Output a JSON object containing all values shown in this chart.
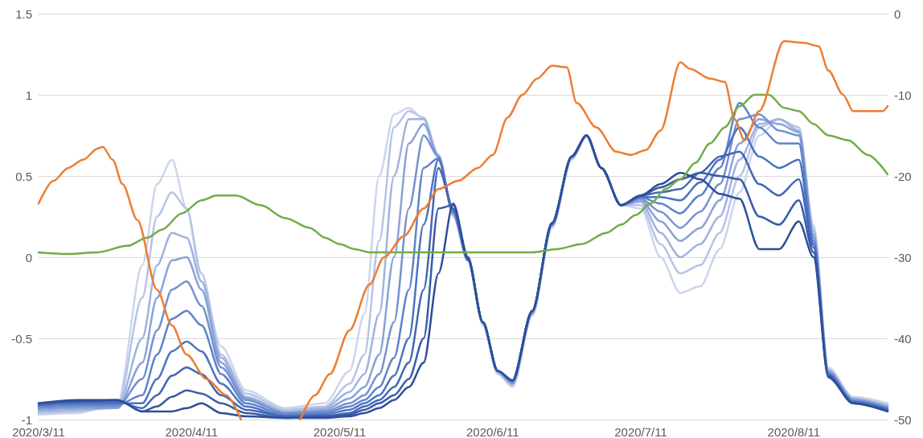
{
  "chart_data": {
    "type": "line",
    "grid": "y",
    "marker": "none",
    "line_style": "solid",
    "x": [
      "2020-03-11",
      "2020-03-19",
      "2020-03-27",
      "2020-04-01",
      "2020-04-04",
      "2020-04-07",
      "2020-04-10",
      "2020-04-13",
      "2020-04-17",
      "2020-04-22",
      "2020-04-30",
      "2020-05-08",
      "2020-05-13",
      "2020-05-16",
      "2020-05-19",
      "2020-05-22",
      "2020-05-25",
      "2020-05-28",
      "2020-05-31",
      "2020-06-03",
      "2020-06-06",
      "2020-06-09",
      "2020-06-12",
      "2020-06-15",
      "2020-06-19",
      "2020-06-23",
      "2020-06-27",
      "2020-06-30",
      "2020-07-03",
      "2020-07-07",
      "2020-07-11",
      "2020-07-15",
      "2020-07-19",
      "2020-07-23",
      "2020-07-27",
      "2020-07-31",
      "2020-08-04",
      "2020-08-08",
      "2020-08-12",
      "2020-08-15",
      "2020-08-18",
      "2020-08-23",
      "2020-08-30"
    ],
    "xlim": [
      "2020-03-11",
      "2020-08-30"
    ],
    "xticks": [
      {
        "value": "2020-03-11",
        "label": "2020/3/11"
      },
      {
        "value": "2020-04-11",
        "label": "2020/4/11"
      },
      {
        "value": "2020-05-11",
        "label": "2020/5/11"
      },
      {
        "value": "2020-06-11",
        "label": "2020/6/11"
      },
      {
        "value": "2020-07-11",
        "label": "2020/7/11"
      },
      {
        "value": "2020-08-11",
        "label": "2020/8/11"
      }
    ],
    "ylim": [
      -1,
      1.5
    ],
    "yticks": [
      -1,
      -0.5,
      0,
      0.5,
      1,
      1.5
    ],
    "y2lim": [
      -50,
      0
    ],
    "y2ticks": [
      -50,
      -40,
      -30,
      -20,
      -10,
      0
    ],
    "series": [
      {
        "color": "#ccd5ec",
        "values": [
          -0.97,
          -0.96,
          -0.9,
          -0.05,
          0.45,
          0.6,
          0.3,
          -0.15,
          -0.55,
          -0.82,
          -0.93,
          -0.9,
          -0.7,
          -0.35,
          0.5,
          0.88,
          0.92,
          0.85,
          0.62,
          0.25,
          -0.02,
          -0.42,
          -0.72,
          -0.8,
          -0.36,
          0.18,
          0.6,
          0.74,
          0.55,
          0.32,
          0.3,
          0.0,
          -0.22,
          -0.18,
          0.05,
          0.4,
          0.75,
          0.85,
          0.8,
          0.2,
          -0.68,
          -0.86,
          -0.9
        ]
      },
      {
        "color": "#b6c4e6",
        "values": [
          -0.96,
          -0.95,
          -0.92,
          -0.25,
          0.25,
          0.4,
          0.3,
          -0.1,
          -0.6,
          -0.84,
          -0.94,
          -0.92,
          -0.78,
          -0.6,
          0.1,
          0.8,
          0.9,
          0.86,
          0.63,
          0.26,
          -0.02,
          -0.41,
          -0.71,
          -0.79,
          -0.35,
          0.19,
          0.61,
          0.75,
          0.55,
          0.32,
          0.32,
          0.08,
          -0.1,
          -0.05,
          0.15,
          0.5,
          0.8,
          0.85,
          0.8,
          0.18,
          -0.69,
          -0.87,
          -0.91
        ]
      },
      {
        "color": "#a0b3df",
        "values": [
          -0.95,
          -0.94,
          -0.93,
          -0.5,
          -0.05,
          0.15,
          0.12,
          -0.15,
          -0.62,
          -0.86,
          -0.95,
          -0.93,
          -0.83,
          -0.72,
          -0.35,
          0.5,
          0.85,
          0.85,
          0.63,
          0.26,
          -0.02,
          -0.41,
          -0.71,
          -0.78,
          -0.35,
          0.19,
          0.61,
          0.75,
          0.55,
          0.32,
          0.34,
          0.15,
          0.0,
          0.08,
          0.25,
          0.6,
          0.82,
          0.85,
          0.78,
          0.16,
          -0.7,
          -0.87,
          -0.92
        ]
      },
      {
        "color": "#8aa2d8",
        "values": [
          -0.94,
          -0.93,
          -0.93,
          -0.65,
          -0.25,
          -0.02,
          0.0,
          -0.2,
          -0.65,
          -0.87,
          -0.96,
          -0.94,
          -0.87,
          -0.8,
          -0.6,
          0.0,
          0.7,
          0.82,
          0.62,
          0.27,
          -0.02,
          -0.4,
          -0.7,
          -0.78,
          -0.34,
          0.2,
          0.62,
          0.75,
          0.55,
          0.32,
          0.35,
          0.22,
          0.1,
          0.18,
          0.35,
          0.7,
          0.85,
          0.82,
          0.77,
          0.14,
          -0.7,
          -0.88,
          -0.92
        ]
      },
      {
        "color": "#7592d1",
        "values": [
          -0.93,
          -0.92,
          -0.92,
          -0.75,
          -0.45,
          -0.2,
          -0.15,
          -0.3,
          -0.68,
          -0.88,
          -0.96,
          -0.95,
          -0.9,
          -0.85,
          -0.72,
          -0.4,
          0.3,
          0.75,
          0.62,
          0.27,
          -0.02,
          -0.4,
          -0.7,
          -0.77,
          -0.34,
          0.2,
          0.62,
          0.75,
          0.55,
          0.32,
          0.36,
          0.28,
          0.18,
          0.28,
          0.45,
          0.85,
          0.88,
          0.78,
          0.75,
          0.12,
          -0.71,
          -0.88,
          -0.93
        ]
      },
      {
        "color": "#5f82ca",
        "values": [
          -0.92,
          -0.91,
          -0.91,
          -0.85,
          -0.6,
          -0.38,
          -0.33,
          -0.42,
          -0.72,
          -0.9,
          -0.97,
          -0.96,
          -0.92,
          -0.88,
          -0.8,
          -0.62,
          -0.2,
          0.55,
          0.61,
          0.28,
          -0.02,
          -0.4,
          -0.7,
          -0.77,
          -0.34,
          0.2,
          0.62,
          0.75,
          0.55,
          0.32,
          0.37,
          0.33,
          0.27,
          0.38,
          0.55,
          0.95,
          0.8,
          0.7,
          0.7,
          0.1,
          -0.72,
          -0.89,
          -0.93
        ]
      },
      {
        "color": "#4d73c2",
        "values": [
          -0.91,
          -0.9,
          -0.9,
          -0.9,
          -0.75,
          -0.58,
          -0.52,
          -0.58,
          -0.78,
          -0.92,
          -0.98,
          -0.97,
          -0.94,
          -0.9,
          -0.85,
          -0.73,
          -0.5,
          0.2,
          0.6,
          0.29,
          -0.02,
          -0.4,
          -0.7,
          -0.76,
          -0.33,
          0.2,
          0.62,
          0.75,
          0.55,
          0.32,
          0.37,
          0.37,
          0.35,
          0.46,
          0.6,
          0.8,
          0.62,
          0.55,
          0.6,
          0.08,
          -0.72,
          -0.89,
          -0.94
        ]
      },
      {
        "color": "#4267b5",
        "values": [
          -0.91,
          -0.89,
          -0.89,
          -0.93,
          -0.85,
          -0.73,
          -0.68,
          -0.72,
          -0.85,
          -0.94,
          -0.98,
          -0.98,
          -0.96,
          -0.92,
          -0.88,
          -0.8,
          -0.65,
          -0.2,
          0.55,
          0.3,
          -0.01,
          -0.4,
          -0.7,
          -0.76,
          -0.33,
          0.21,
          0.62,
          0.75,
          0.55,
          0.32,
          0.38,
          0.4,
          0.42,
          0.52,
          0.62,
          0.65,
          0.45,
          0.38,
          0.48,
          0.06,
          -0.73,
          -0.9,
          -0.94
        ]
      },
      {
        "color": "#385ba7",
        "values": [
          -0.9,
          -0.89,
          -0.88,
          -0.95,
          -0.92,
          -0.86,
          -0.82,
          -0.84,
          -0.9,
          -0.96,
          -0.99,
          -0.98,
          -0.97,
          -0.94,
          -0.9,
          -0.85,
          -0.75,
          -0.5,
          0.3,
          0.32,
          -0.01,
          -0.4,
          -0.7,
          -0.76,
          -0.33,
          0.21,
          0.62,
          0.75,
          0.55,
          0.32,
          0.38,
          0.43,
          0.48,
          0.52,
          0.5,
          0.48,
          0.25,
          0.2,
          0.35,
          0.03,
          -0.73,
          -0.9,
          -0.95
        ]
      },
      {
        "color": "#2e4f98",
        "values": [
          -0.9,
          -0.88,
          -0.88,
          -0.95,
          -0.95,
          -0.95,
          -0.93,
          -0.9,
          -0.96,
          -0.98,
          -0.99,
          -0.99,
          -0.98,
          -0.96,
          -0.93,
          -0.88,
          -0.8,
          -0.65,
          -0.1,
          0.33,
          0.0,
          -0.4,
          -0.7,
          -0.76,
          -0.33,
          0.21,
          0.62,
          0.75,
          0.55,
          0.32,
          0.38,
          0.45,
          0.52,
          0.48,
          0.39,
          0.36,
          0.05,
          0.05,
          0.22,
          0.0,
          -0.74,
          -0.9,
          -0.95
        ]
      },
      {
        "color": "#ed7d31",
        "axis": "y2",
        "x": [
          "2020-03-11",
          "2020-03-14",
          "2020-03-17",
          "2020-03-20",
          "2020-03-23",
          "2020-03-24",
          "2020-03-26",
          "2020-03-28",
          "2020-03-31",
          "2020-04-04",
          "2020-04-07",
          "2020-04-10",
          "2020-04-14",
          "2020-04-18",
          "2020-04-21",
          "2020-04-27",
          "2020-05-03",
          "2020-05-06",
          "2020-05-09",
          "2020-05-13",
          "2020-05-17",
          "2020-05-20",
          "2020-05-24",
          "2020-05-28",
          "2020-05-31",
          "2020-06-04",
          "2020-06-08",
          "2020-06-11",
          "2020-06-14",
          "2020-06-17",
          "2020-06-20",
          "2020-06-23",
          "2020-06-26",
          "2020-06-28",
          "2020-07-02",
          "2020-07-06",
          "2020-07-09",
          "2020-07-12",
          "2020-07-15",
          "2020-07-19",
          "2020-07-21",
          "2020-07-25",
          "2020-07-28",
          "2020-07-30",
          "2020-08-01",
          "2020-08-04",
          "2020-08-09",
          "2020-08-13",
          "2020-08-16",
          "2020-08-18",
          "2020-08-21",
          "2020-08-23",
          "2020-08-29",
          "2020-08-30"
        ],
        "values": [
          -23.4,
          -20.6,
          -19,
          -18,
          -16.6,
          -16.4,
          -18,
          -21,
          -25.4,
          -34,
          -38.4,
          -42,
          -45,
          -47,
          -50,
          null,
          -50,
          -47,
          -44.4,
          -39,
          -33.4,
          -30,
          -27.4,
          -24,
          -21.6,
          -20.6,
          -19,
          -17.4,
          -12.8,
          -10,
          -8,
          -6.4,
          -6.6,
          -11,
          -14,
          -17,
          -17.4,
          -16.8,
          -14.4,
          -6,
          -6.8,
          -8,
          -8.4,
          -13,
          -15.6,
          -12,
          -3.4,
          -3.6,
          -4,
          -7,
          -10,
          -12,
          -12,
          -11.4
        ]
      },
      {
        "color": "#70ad47",
        "x": [
          "2020-03-11",
          "2020-03-17",
          "2020-03-23",
          "2020-03-29",
          "2020-04-02",
          "2020-04-05",
          "2020-04-09",
          "2020-04-13",
          "2020-04-16",
          "2020-04-20",
          "2020-04-25",
          "2020-04-30",
          "2020-05-05",
          "2020-05-08",
          "2020-05-11",
          "2020-05-14",
          "2020-05-17",
          "2020-05-20",
          "2020-05-30",
          "2020-06-09",
          "2020-06-19",
          "2020-06-24",
          "2020-06-29",
          "2020-07-04",
          "2020-07-07",
          "2020-07-10",
          "2020-07-13",
          "2020-07-16",
          "2020-07-19",
          "2020-07-22",
          "2020-07-25",
          "2020-07-28",
          "2020-07-31",
          "2020-08-03",
          "2020-08-06",
          "2020-08-09",
          "2020-08-12",
          "2020-08-15",
          "2020-08-18",
          "2020-08-22",
          "2020-08-26",
          "2020-08-30"
        ],
        "values": [
          0.03,
          0.02,
          0.03,
          0.07,
          0.12,
          0.17,
          0.27,
          0.35,
          0.38,
          0.38,
          0.32,
          0.24,
          0.18,
          0.12,
          0.08,
          0.05,
          0.03,
          0.03,
          0.03,
          0.03,
          0.03,
          0.05,
          0.08,
          0.15,
          0.2,
          0.26,
          0.33,
          0.42,
          0.48,
          0.58,
          0.7,
          0.8,
          0.93,
          1.0,
          1.0,
          0.92,
          0.9,
          0.82,
          0.75,
          0.72,
          0.63,
          0.51
        ]
      }
    ]
  }
}
